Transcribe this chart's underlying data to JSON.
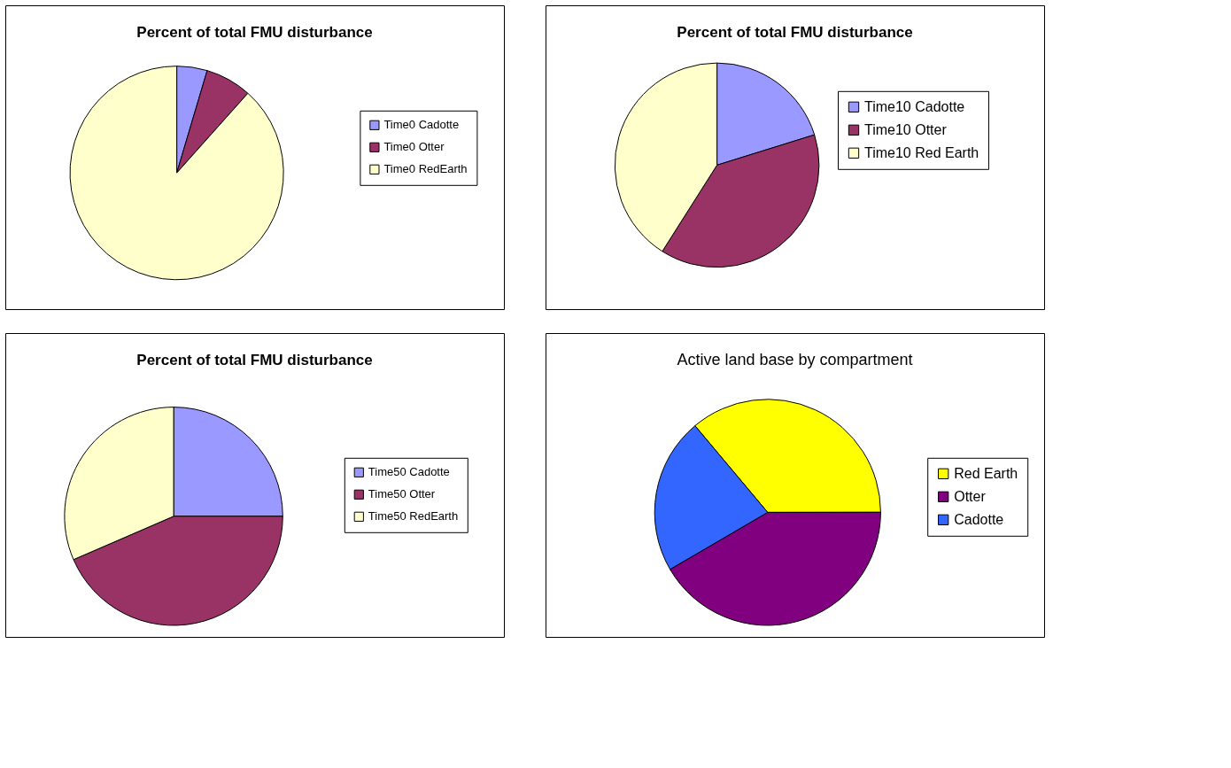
{
  "chart_data": [
    {
      "type": "pie",
      "title": "Percent of total FMU disturbance",
      "categories": [
        "Time0 Cadotte",
        "Time0 Otter",
        "Time0 RedEarth"
      ],
      "values": [
        4.6,
        7,
        88.4
      ],
      "colors": [
        "#9999ff",
        "#993366",
        "#ffffcc"
      ],
      "legend": "right"
    },
    {
      "type": "pie",
      "title": "Percent of total FMU disturbance",
      "categories": [
        "Time10 Cadotte",
        "Time10 Otter",
        "Time10 Red Earth"
      ],
      "values": [
        20.2,
        38.8,
        41
      ],
      "colors": [
        "#9999ff",
        "#993366",
        "#ffffcc"
      ],
      "legend": "right"
    },
    {
      "type": "pie",
      "title": "Percent of total FMU disturbance",
      "categories": [
        "Time50 Cadotte",
        "Time50 Otter",
        "Time50 RedEarth"
      ],
      "values": [
        25,
        43.5,
        31.5
      ],
      "colors": [
        "#9999ff",
        "#993366",
        "#ffffcc"
      ],
      "legend": "right"
    },
    {
      "type": "pie",
      "title": "Active land base by compartment",
      "categories": [
        "Red Earth",
        "Otter",
        "Cadotte"
      ],
      "values": [
        36.1,
        41.6,
        22.3
      ],
      "colors": [
        "#ffff00",
        "#800080",
        "#3366ff"
      ],
      "legend": "right"
    }
  ]
}
